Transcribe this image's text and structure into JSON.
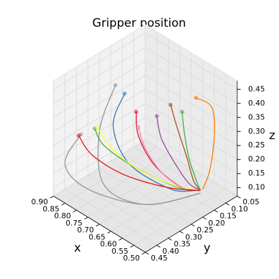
{
  "chart_data": {
    "type": "line3d",
    "title": "Gripper position",
    "xlabel": "x",
    "ylabel": "y",
    "zlabel": "z",
    "xlim": [
      0.5,
      0.9
    ],
    "ylim": [
      0.05,
      0.45
    ],
    "zlim": [
      0.07,
      0.48
    ],
    "xticks": [
      {
        "value": 0.5,
        "label": "0.50"
      },
      0.55,
      {
        "value": 0.6,
        "label": "0.60"
      },
      0.65,
      {
        "value": 0.7,
        "label": "0.70"
      },
      0.75,
      {
        "value": 0.8,
        "label": "0.80"
      },
      0.85,
      {
        "value": 0.9,
        "label": "0.90"
      }
    ],
    "yticks": [
      0.05,
      {
        "value": 0.1,
        "label": "0.10"
      },
      0.15,
      {
        "value": 0.2,
        "label": "0.20"
      },
      0.25,
      {
        "value": 0.3,
        "label": "0.30"
      },
      0.35,
      {
        "value": 0.4,
        "label": "0.40"
      },
      0.45
    ],
    "zticks": [
      {
        "value": 0.1,
        "label": "0.10"
      },
      0.15,
      {
        "value": 0.2,
        "label": "0.20"
      },
      0.25,
      {
        "value": 0.3,
        "label": "0.30"
      },
      0.35,
      {
        "value": 0.4,
        "label": "0.40"
      },
      0.45
    ],
    "grid": true,
    "series": [
      {
        "color": "#ff7f00",
        "x": [
          0.55,
          0.54,
          0.55,
          0.56,
          0.57
        ],
        "y": [
          0.18,
          0.12,
          0.1,
          0.11,
          0.13
        ],
        "z": [
          0.46,
          0.4,
          0.28,
          0.16,
          0.1
        ]
      },
      {
        "color": "#999999",
        "x": [
          0.78,
          0.8,
          0.75,
          0.65,
          0.57
        ],
        "y": [
          0.3,
          0.35,
          0.38,
          0.3,
          0.14
        ],
        "z": [
          0.45,
          0.3,
          0.15,
          0.09,
          0.09
        ]
      },
      {
        "color": "#377eb8",
        "x": [
          0.76,
          0.77,
          0.72,
          0.62,
          0.58
        ],
        "y": [
          0.28,
          0.32,
          0.3,
          0.22,
          0.15
        ],
        "z": [
          0.42,
          0.32,
          0.2,
          0.12,
          0.1
        ]
      },
      {
        "color": "#e41a1c",
        "x": [
          0.72,
          0.7,
          0.66,
          0.6,
          0.57
        ],
        "y": [
          0.27,
          0.28,
          0.25,
          0.19,
          0.14
        ],
        "z": [
          0.37,
          0.3,
          0.2,
          0.12,
          0.1
        ]
      },
      {
        "color": "#4daf4a",
        "x": [
          0.82,
          0.8,
          0.72,
          0.62,
          0.57
        ],
        "y": [
          0.35,
          0.33,
          0.28,
          0.2,
          0.14
        ],
        "z": [
          0.3,
          0.24,
          0.18,
          0.12,
          0.1
        ]
      },
      {
        "color": "#984ea3",
        "x": [
          0.68,
          0.66,
          0.62,
          0.59,
          0.57
        ],
        "y": [
          0.22,
          0.22,
          0.2,
          0.17,
          0.14
        ],
        "z": [
          0.35,
          0.28,
          0.2,
          0.13,
          0.1
        ]
      },
      {
        "color": "#ffff33",
        "x": [
          0.8,
          0.76,
          0.7,
          0.62,
          0.57
        ],
        "y": [
          0.36,
          0.34,
          0.29,
          0.21,
          0.14
        ],
        "z": [
          0.32,
          0.26,
          0.19,
          0.13,
          0.1
        ]
      },
      {
        "color": "#a65628",
        "x": [
          0.66,
          0.64,
          0.61,
          0.59,
          0.57
        ],
        "y": [
          0.18,
          0.17,
          0.16,
          0.15,
          0.14
        ],
        "z": [
          0.38,
          0.3,
          0.21,
          0.13,
          0.1
        ]
      },
      {
        "color": "#f781bf",
        "x": [
          0.7,
          0.68,
          0.64,
          0.6,
          0.57
        ],
        "y": [
          0.28,
          0.27,
          0.24,
          0.19,
          0.14
        ],
        "z": [
          0.33,
          0.26,
          0.18,
          0.12,
          0.1
        ]
      },
      {
        "color": "#999999",
        "x": [
          0.85,
          0.88,
          0.8,
          0.65,
          0.57
        ],
        "y": [
          0.38,
          0.42,
          0.4,
          0.3,
          0.14
        ],
        "z": [
          0.28,
          0.18,
          0.12,
          0.09,
          0.09
        ]
      },
      {
        "color": "#4daf4a",
        "x": [
          0.64,
          0.63,
          0.61,
          0.59,
          0.57
        ],
        "y": [
          0.15,
          0.15,
          0.15,
          0.14,
          0.14
        ],
        "z": [
          0.35,
          0.28,
          0.2,
          0.13,
          0.1
        ]
      },
      {
        "color": "#e41a1c",
        "x": [
          0.84,
          0.8,
          0.72,
          0.63,
          0.57
        ],
        "y": [
          0.4,
          0.38,
          0.32,
          0.22,
          0.14
        ],
        "z": [
          0.29,
          0.23,
          0.17,
          0.12,
          0.1
        ]
      }
    ]
  }
}
